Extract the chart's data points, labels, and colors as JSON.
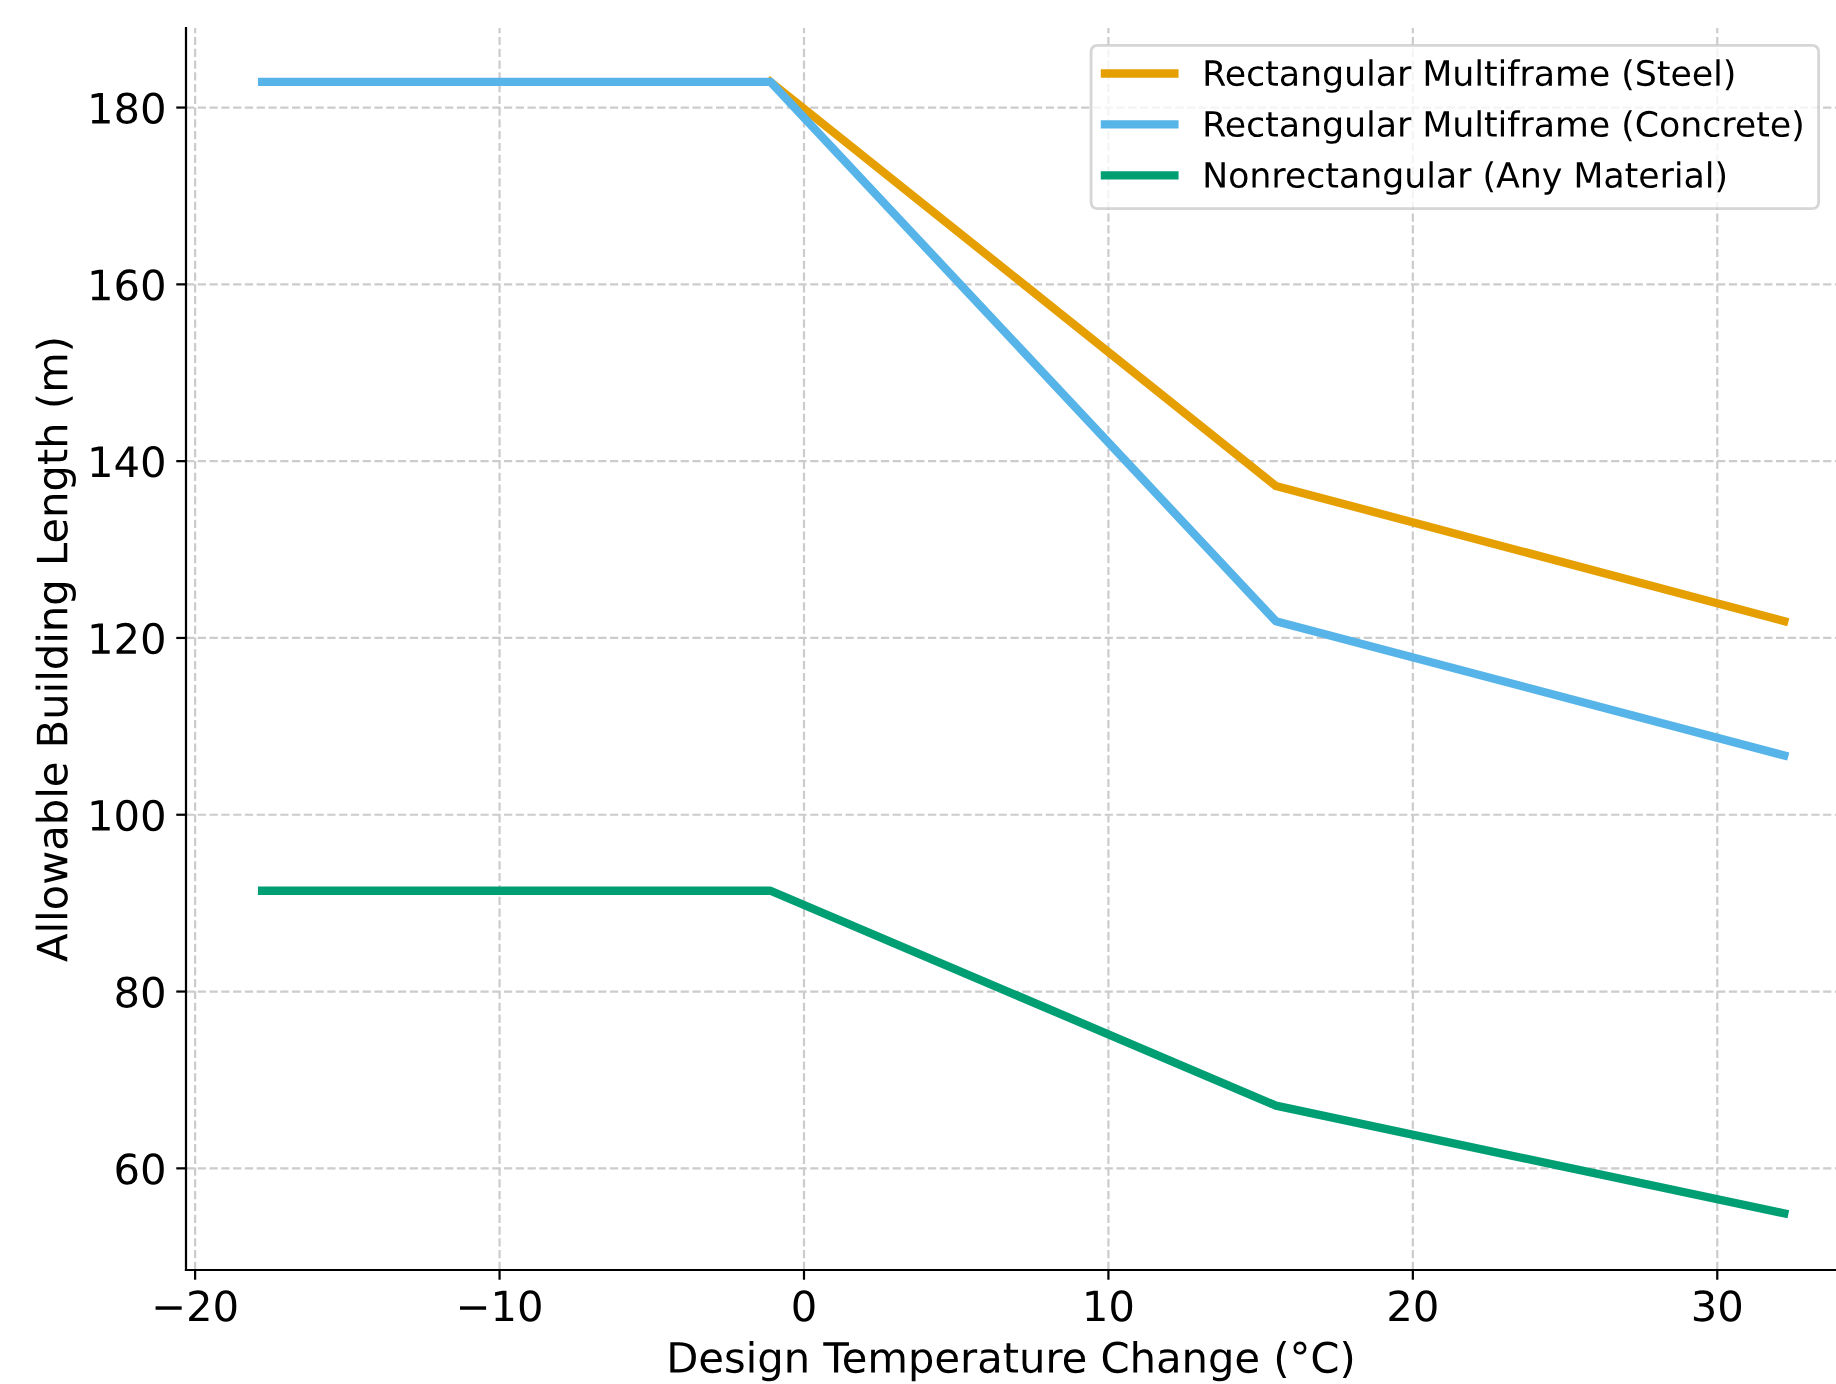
{
  "chart_data": {
    "type": "line",
    "xlabel": "Design Temperature Change (°C)",
    "ylabel": "Allowable Building Length (m)",
    "x": [
      -17.8,
      -1.1,
      15.5,
      32.2
    ],
    "series": [
      {
        "name": "Rectangular Multiframe (Steel)",
        "color": "#e69f00",
        "values": [
          null,
          182.9,
          137.2,
          121.9
        ]
      },
      {
        "name": "Rectangular Multiframe (Concrete)",
        "color": "#56b4e9",
        "values": [
          182.9,
          182.9,
          121.9,
          106.7
        ]
      },
      {
        "name": "Nonrectangular (Any Material)",
        "color": "#009e73",
        "values": [
          91.4,
          91.4,
          67.1,
          54.9
        ]
      }
    ],
    "xlim": [
      -20.3,
      33.9
    ],
    "ylim": [
      48.5,
      189
    ],
    "xticks": [
      -20,
      -10,
      0,
      10,
      20,
      30
    ],
    "yticks": [
      60,
      80,
      100,
      120,
      140,
      160,
      180
    ],
    "grid": true,
    "legend": "top right",
    "marker": "none",
    "line_style": "solid"
  }
}
